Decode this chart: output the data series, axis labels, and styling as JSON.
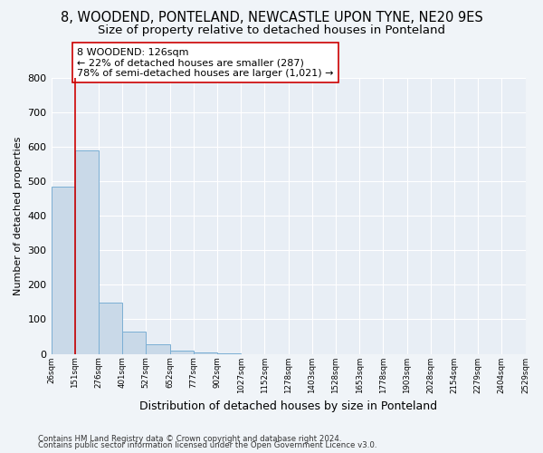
{
  "title": "8, WOODEND, PONTELAND, NEWCASTLE UPON TYNE, NE20 9ES",
  "subtitle": "Size of property relative to detached houses in Ponteland",
  "xlabel": "Distribution of detached houses by size in Ponteland",
  "ylabel": "Number of detached properties",
  "bar_values": [
    485,
    590,
    148,
    65,
    27,
    8,
    5,
    1,
    0,
    0,
    0,
    0,
    0,
    0,
    0,
    0,
    0,
    0,
    0,
    0
  ],
  "bar_color": "#c9d9e8",
  "bar_edge_color": "#7bafd4",
  "bin_labels": [
    "26sqm",
    "151sqm",
    "276sqm",
    "401sqm",
    "527sqm",
    "652sqm",
    "777sqm",
    "902sqm",
    "1027sqm",
    "1152sqm",
    "1278sqm",
    "1403sqm",
    "1528sqm",
    "1653sqm",
    "1778sqm",
    "1903sqm",
    "2028sqm",
    "2154sqm",
    "2279sqm",
    "2404sqm",
    "2529sqm"
  ],
  "vline_x": 1,
  "vline_color": "#cc0000",
  "annotation_text": "8 WOODEND: 126sqm\n← 22% of detached houses are smaller (287)\n78% of semi-detached houses are larger (1,021) →",
  "annotation_box_color": "#ffffff",
  "annotation_box_edge": "#cc0000",
  "ylim": [
    0,
    800
  ],
  "yticks": [
    0,
    100,
    200,
    300,
    400,
    500,
    600,
    700,
    800
  ],
  "footer1": "Contains HM Land Registry data © Crown copyright and database right 2024.",
  "footer2": "Contains public sector information licensed under the Open Government Licence v3.0.",
  "bg_color": "#f0f4f8",
  "plot_bg_color": "#e8eef5",
  "grid_color": "#ffffff",
  "title_fontsize": 10.5,
  "subtitle_fontsize": 9.5
}
